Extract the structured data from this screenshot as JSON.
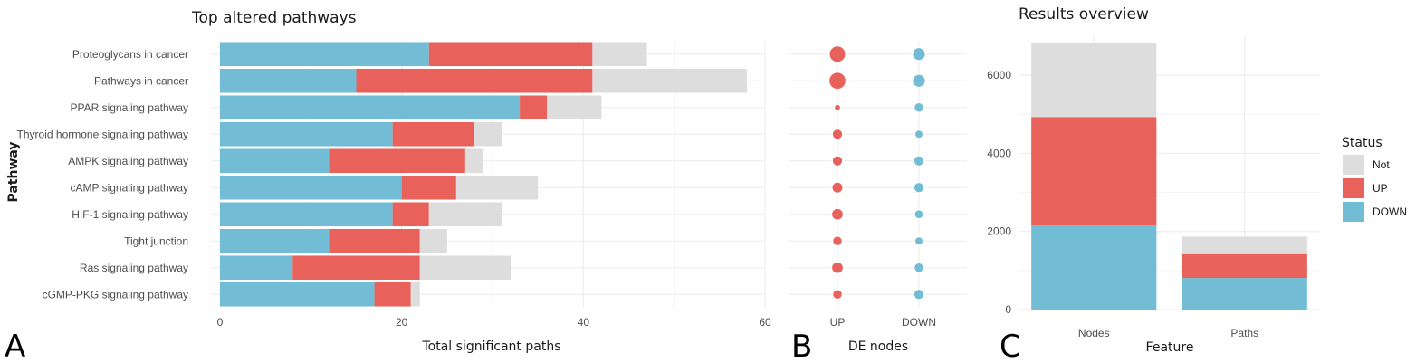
{
  "colors": {
    "DOWN": "#72bcd5",
    "UP": "#e8615a",
    "Not": "#dddddd"
  },
  "panels": {
    "A": "A",
    "B": "B",
    "C": "C"
  },
  "chart_data": [
    {
      "id": "A",
      "type": "bar",
      "orientation": "horizontal",
      "stacked": true,
      "title": "Top altered pathways",
      "xlabel": "Total significant paths",
      "ylabel": "Pathway",
      "xlim": [
        0,
        60
      ],
      "xticks": [
        0,
        20,
        40,
        60
      ],
      "categories": [
        "Proteoglycans in cancer",
        "Pathways in cancer",
        "PPAR signaling pathway",
        "Thyroid hormone signaling pathway",
        "AMPK signaling pathway",
        "cAMP signaling pathway",
        "HIF-1 signaling pathway",
        "Tight junction",
        "Ras signaling pathway",
        "cGMP-PKG signaling pathway"
      ],
      "series": [
        {
          "name": "DOWN",
          "values": [
            23,
            15,
            33,
            19,
            12,
            20,
            19,
            12,
            8,
            17
          ]
        },
        {
          "name": "UP",
          "values": [
            18,
            26,
            3,
            9,
            15,
            6,
            4,
            10,
            14,
            4
          ]
        },
        {
          "name": "Not",
          "values": [
            6,
            17,
            6,
            3,
            2,
            9,
            8,
            3,
            10,
            1
          ]
        }
      ]
    },
    {
      "id": "B",
      "type": "scatter",
      "xlabel": "DE nodes",
      "ylabel": "",
      "x": [
        "UP",
        "DOWN"
      ],
      "categories": [
        "Proteoglycans in cancer",
        "Pathways in cancer",
        "PPAR signaling pathway",
        "Thyroid hormone signaling pathway",
        "AMPK signaling pathway",
        "cAMP signaling pathway",
        "HIF-1 signaling pathway",
        "Tight junction",
        "Ras signaling pathway",
        "cGMP-PKG signaling pathway"
      ],
      "series": [
        {
          "name": "UP",
          "values": [
            0.9,
            0.95,
            0.15,
            0.45,
            0.45,
            0.5,
            0.55,
            0.4,
            0.55,
            0.4
          ]
        },
        {
          "name": "DOWN",
          "values": [
            0.65,
            0.65,
            0.4,
            0.3,
            0.45,
            0.45,
            0.35,
            0.3,
            0.4,
            0.45
          ]
        }
      ]
    },
    {
      "id": "C",
      "type": "bar",
      "stacked": true,
      "title": "Results overview",
      "xlabel": "Feature",
      "ylabel": "",
      "ylim": [
        0,
        7000
      ],
      "yticks": [
        0,
        2000,
        4000,
        6000
      ],
      "categories": [
        "Nodes",
        "Paths"
      ],
      "series": [
        {
          "name": "DOWN",
          "values": [
            2150,
            810
          ]
        },
        {
          "name": "UP",
          "values": [
            2780,
            610
          ]
        },
        {
          "name": "Not",
          "values": [
            1900,
            450
          ]
        }
      ],
      "legend": {
        "title": "Status",
        "position": "right",
        "entries": [
          "Not",
          "UP",
          "DOWN"
        ]
      }
    }
  ]
}
